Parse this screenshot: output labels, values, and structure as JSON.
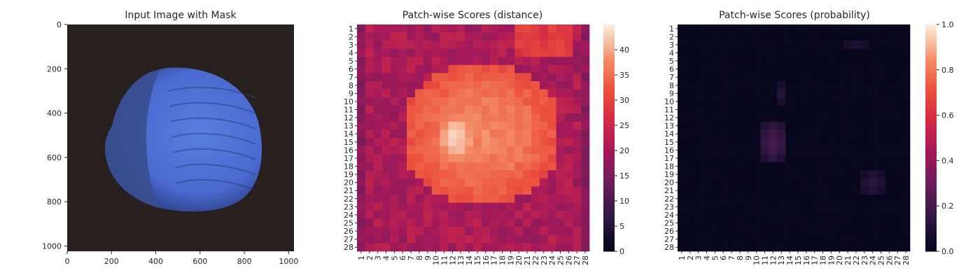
{
  "chart_data": [
    {
      "type": "image",
      "title": "Input Image with Mask",
      "xlim": [
        0,
        1024
      ],
      "ylim": [
        1024,
        0
      ],
      "xticks": [
        0,
        200,
        400,
        600,
        800,
        1000
      ],
      "yticks": [
        0,
        200,
        400,
        600,
        800,
        1000
      ],
      "colors": {
        "background": "#27201f",
        "object": "#4a6ad0",
        "object_dark": "#2d3f86"
      }
    },
    {
      "type": "heatmap",
      "title": "Patch-wise Scores (distance)",
      "rows": 28,
      "cols": 28,
      "row_labels": [
        "1",
        "2",
        "3",
        "4",
        "5",
        "6",
        "7",
        "8",
        "9",
        "10",
        "11",
        "12",
        "13",
        "14",
        "15",
        "16",
        "17",
        "18",
        "19",
        "20",
        "21",
        "22",
        "23",
        "24",
        "25",
        "26",
        "27",
        "28"
      ],
      "col_labels": [
        "1",
        "2",
        "3",
        "4",
        "5",
        "6",
        "7",
        "8",
        "9",
        "10",
        "11",
        "12",
        "13",
        "14",
        "15",
        "16",
        "17",
        "18",
        "19",
        "20",
        "21",
        "22",
        "23",
        "24",
        "25",
        "26",
        "27",
        "28"
      ],
      "vmin": 0,
      "vmax": 45,
      "colorbar_ticks": [
        0,
        5,
        10,
        15,
        20,
        25,
        30,
        35,
        40
      ],
      "colormap": "rocket",
      "baseline_value": 20,
      "peak_value": 44
    },
    {
      "type": "heatmap",
      "title": "Patch-wise Scores (probability)",
      "rows": 28,
      "cols": 28,
      "row_labels": [
        "1",
        "2",
        "3",
        "4",
        "5",
        "6",
        "7",
        "8",
        "9",
        "10",
        "11",
        "12",
        "13",
        "14",
        "15",
        "16",
        "17",
        "18",
        "19",
        "20",
        "21",
        "22",
        "23",
        "24",
        "25",
        "26",
        "27",
        "28"
      ],
      "col_labels": [
        "1",
        "2",
        "3",
        "4",
        "5",
        "6",
        "7",
        "8",
        "9",
        "10",
        "11",
        "12",
        "13",
        "14",
        "15",
        "16",
        "17",
        "18",
        "19",
        "20",
        "21",
        "22",
        "23",
        "24",
        "25",
        "26",
        "27",
        "28"
      ],
      "vmin": 0,
      "vmax": 1,
      "colorbar_ticks": [
        "0.0",
        "0.2",
        "0.4",
        "0.6",
        "0.8",
        "1.0"
      ],
      "colormap": "rocket",
      "baseline_value": 0.01,
      "peak_value": 0.22
    }
  ]
}
